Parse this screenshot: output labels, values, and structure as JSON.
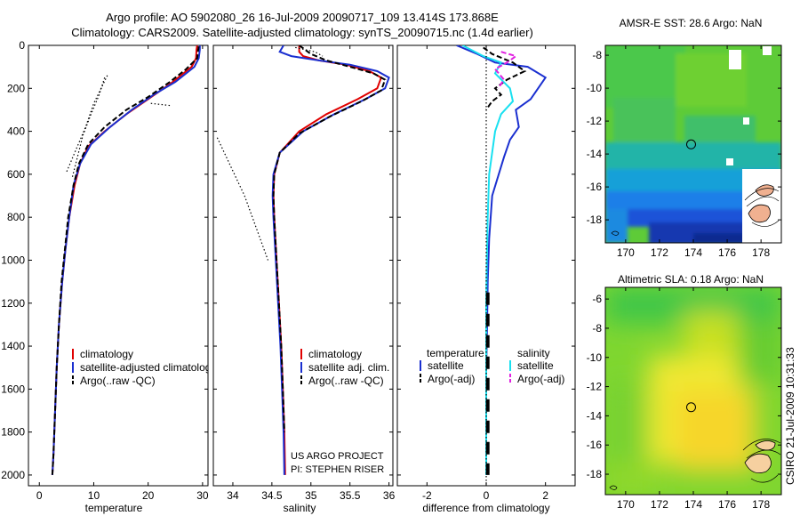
{
  "title": {
    "line1": "Argo profile: AO 5902080_26 16-Jul-2009 20090717_109 13.414S 173.868E",
    "line2": "Climatology: CARS2009. Satellite-adjusted climatology: synTS_20090715.nc (1.4d earlier)"
  },
  "credits": {
    "project": "US ARGO PROJECT",
    "pi": "PI: STEPHEN RISER",
    "stamp": "CSIRO 21-Jul-2009 10:31:33"
  },
  "colors": {
    "climatology": "#e00000",
    "satellite": "#1a2fd0",
    "argo": "#000000",
    "cyan": "#18e0f0",
    "magenta": "#e020e0"
  },
  "chart_data": [
    {
      "type": "line",
      "id": "temperature",
      "xlabel": "temperature",
      "ylabel": "",
      "xlim": [
        -2,
        31
      ],
      "ylim": [
        2050,
        0
      ],
      "xticks": [
        0,
        10,
        20,
        30
      ],
      "yticks": [
        0,
        200,
        400,
        600,
        800,
        1000,
        1200,
        1400,
        1600,
        1800,
        2000
      ],
      "legend": {
        "position": "bottom-right",
        "entries": [
          {
            "label": "climatology",
            "color_key": "climatology",
            "style": "solid"
          },
          {
            "label": "satellite-adjusted climatology",
            "color_key": "satellite",
            "style": "solid"
          },
          {
            "label": "Argo(..raw -QC)",
            "color_key": "argo",
            "style": "dash"
          }
        ]
      },
      "series": [
        {
          "name": "climatology",
          "color_key": "climatology",
          "style": "solid",
          "x": [
            29,
            28.9,
            28.8,
            28,
            24,
            20,
            16,
            12,
            9,
            7.5,
            6.5,
            5.5,
            4.8,
            4.2,
            3.6,
            3.2,
            2.9,
            2.6,
            2.4
          ],
          "y": [
            0,
            20,
            60,
            100,
            180,
            250,
            320,
            400,
            470,
            550,
            650,
            800,
            950,
            1100,
            1300,
            1500,
            1700,
            1900,
            2000
          ]
        },
        {
          "name": "satellite-adjusted climatology",
          "color_key": "satellite",
          "style": "solid",
          "x": [
            29.5,
            29.5,
            29.3,
            28.5,
            25,
            21,
            17,
            13,
            9.5,
            7.5,
            6.3,
            5.5,
            4.8,
            4.2,
            3.6,
            3.2,
            2.9,
            2.6,
            2.4
          ],
          "y": [
            0,
            20,
            60,
            100,
            170,
            230,
            300,
            380,
            460,
            550,
            650,
            800,
            950,
            1100,
            1300,
            1500,
            1700,
            1900,
            2000
          ]
        },
        {
          "name": "Argo(..raw -QC)",
          "color_key": "argo",
          "style": "dash",
          "x": [
            29.3,
            29.2,
            29,
            27,
            24,
            20,
            16,
            12,
            9,
            7.3,
            6.3,
            5.3,
            4.7,
            4.1,
            3.6,
            3.2,
            2.9,
            2.6,
            2.4
          ],
          "y": [
            5,
            20,
            60,
            110,
            170,
            240,
            300,
            380,
            460,
            550,
            650,
            800,
            950,
            1100,
            1300,
            1500,
            1700,
            1900,
            2000
          ]
        },
        {
          "name": "envelope-left",
          "color_key": "argo",
          "style": "dot",
          "x": [
            12.5,
            10,
            8.5,
            6.5,
            5
          ],
          "y": [
            140,
            270,
            380,
            500,
            590
          ]
        },
        {
          "name": "envelope-right",
          "color_key": "argo",
          "style": "dot",
          "x": [
            12,
            11,
            9.5,
            8,
            7,
            6
          ],
          "y": [
            150,
            230,
            320,
            420,
            520,
            620
          ]
        },
        {
          "name": "envelope-tick",
          "color_key": "argo",
          "style": "dot",
          "x": [
            20.5,
            24
          ],
          "y": [
            270,
            280
          ]
        }
      ]
    },
    {
      "type": "line",
      "id": "salinity",
      "xlabel": "salinity",
      "xlim": [
        33.75,
        36.05
      ],
      "ylim": [
        2050,
        0
      ],
      "xticks": [
        34,
        34.5,
        35,
        35.5,
        36
      ],
      "xticklabels": [
        "34",
        "34.5",
        "35",
        "35.5",
        "36"
      ],
      "yticks": [
        0,
        200,
        400,
        600,
        800,
        1000,
        1200,
        1400,
        1600,
        1800,
        2000
      ],
      "legend": {
        "position": "bottom-right",
        "entries": [
          {
            "label": "climatology",
            "color_key": "climatology",
            "style": "solid"
          },
          {
            "label": "satellite adj. clim.",
            "color_key": "satellite",
            "style": "solid"
          },
          {
            "label": "Argo(..raw -QC)",
            "color_key": "argo",
            "style": "dash"
          }
        ]
      },
      "series": [
        {
          "name": "climatology",
          "color_key": "climatology",
          "style": "solid",
          "x": [
            34.85,
            34.85,
            34.9,
            35.1,
            35.45,
            35.75,
            35.9,
            35.85,
            35.6,
            35.2,
            34.85,
            34.6,
            34.53,
            34.52,
            34.53,
            34.56,
            34.59,
            34.62,
            34.64,
            34.66,
            34.67
          ],
          "y": [
            0,
            30,
            50,
            70,
            90,
            120,
            150,
            200,
            250,
            320,
            400,
            500,
            600,
            700,
            800,
            1000,
            1200,
            1400,
            1600,
            1800,
            2000
          ]
        },
        {
          "name": "satellite adj. clim.",
          "color_key": "satellite",
          "style": "solid",
          "x": [
            34.65,
            34.6,
            34.75,
            35.1,
            35.5,
            35.85,
            36,
            35.95,
            35.7,
            35.3,
            34.9,
            34.6,
            34.52,
            34.51,
            34.52,
            34.55,
            34.58,
            34.61,
            34.63,
            34.65,
            34.66
          ],
          "y": [
            0,
            30,
            50,
            70,
            90,
            120,
            150,
            200,
            250,
            320,
            400,
            500,
            600,
            700,
            800,
            1000,
            1200,
            1400,
            1600,
            1800,
            2000
          ]
        },
        {
          "name": "Argo(..raw -QC)",
          "color_key": "argo",
          "style": "dash",
          "x": [
            34.85,
            35.0,
            35.2,
            35.5,
            35.8,
            35.95,
            35.9,
            35.65,
            35.25,
            34.85,
            34.6,
            34.53,
            34.52,
            34.53,
            34.56,
            34.59,
            34.62,
            34.64,
            34.66
          ],
          "y": [
            0,
            40,
            70,
            100,
            130,
            160,
            210,
            260,
            330,
            410,
            500,
            600,
            700,
            800,
            1000,
            1200,
            1400,
            1600,
            1800
          ]
        },
        {
          "name": "envelope",
          "color_key": "argo",
          "style": "dot",
          "x": [
            33.8,
            34.15,
            34.45
          ],
          "y": [
            430,
            700,
            1000
          ]
        },
        {
          "name": "surface-marks",
          "color_key": "argo",
          "style": "dot",
          "x": [
            34.8,
            35.05,
            35.15
          ],
          "y": [
            10,
            30,
            50
          ]
        }
      ]
    },
    {
      "type": "line",
      "id": "difference",
      "xlabel": "difference from climatology",
      "xlim": [
        -3,
        3
      ],
      "ylim": [
        2050,
        0
      ],
      "xticks": [
        -2,
        0,
        2
      ],
      "yticks": [
        0,
        200,
        400,
        600,
        800,
        1000,
        1200,
        1400,
        1600,
        1800,
        2000
      ],
      "legend": {
        "position": "bottom",
        "column_headers": [
          "temperature",
          "salinity"
        ],
        "entries": [
          {
            "label": "satellite",
            "color_key": "satellite",
            "style": "solid",
            "column": 0
          },
          {
            "label": "Argo(-adj)",
            "color_key": "argo",
            "style": "dash",
            "column": 0
          },
          {
            "label": "satellite",
            "color_key": "cyan",
            "style": "solid",
            "column": 1
          },
          {
            "label": "Argo(-adj)",
            "color_key": "magenta",
            "style": "dash",
            "column": 1
          }
        ]
      },
      "series": [
        {
          "name": "temperature satellite",
          "color_key": "satellite",
          "style": "solid",
          "x": [
            -1,
            -0.3,
            0.3,
            1.4,
            2.0,
            1.5,
            1.0,
            1.1,
            0.8,
            0.6,
            0.2,
            0.1,
            0.05,
            0.03,
            0,
            0,
            0,
            0
          ],
          "y": [
            0,
            40,
            80,
            100,
            150,
            250,
            300,
            380,
            440,
            520,
            700,
            900,
            1100,
            1300,
            1500,
            1700,
            1900,
            2000
          ]
        },
        {
          "name": "temperature Argo(-adj)",
          "color_key": "argo",
          "style": "dash",
          "x": [
            -0.1,
            0.2,
            0.9,
            1.3,
            0.7,
            0.3,
            0.5,
            0.2,
            0.1,
            0
          ],
          "y": [
            10,
            40,
            80,
            120,
            160,
            200,
            230,
            260,
            280,
            300
          ]
        },
        {
          "name": "salinity satellite",
          "color_key": "cyan",
          "style": "solid",
          "x": [
            -0.8,
            -0.1,
            0.5,
            0.3,
            0.8,
            0.9,
            0.5,
            0.3,
            0.1,
            0.05,
            0.02,
            0,
            0,
            0,
            0,
            0
          ],
          "y": [
            0,
            50,
            80,
            130,
            200,
            260,
            320,
            400,
            600,
            800,
            1000,
            1200,
            1400,
            1600,
            1800,
            2000
          ]
        },
        {
          "name": "salinity Argo(-adj)",
          "color_key": "magenta",
          "style": "dash",
          "x": [
            0.5,
            1.0,
            0.7,
            0.3,
            0.6,
            0.4
          ],
          "y": [
            30,
            50,
            80,
            110,
            160,
            200
          ]
        },
        {
          "name": "zero line",
          "color_key": "argo",
          "style": "dot",
          "x": [
            0,
            0
          ],
          "y": [
            0,
            2050
          ]
        },
        {
          "name": "deep Argo segments",
          "color_key": "argo",
          "style": "thickdash",
          "x": [
            0.05,
            0.05,
            0.05,
            0.05
          ],
          "y": [
            1150,
            1300,
            1400,
            2000
          ]
        }
      ]
    },
    {
      "type": "heatmap",
      "id": "sst-map",
      "title": "AMSR-E SST: 28.6 Argo: NaN",
      "xlim": [
        168.8,
        179.2
      ],
      "ylim": [
        -19.4,
        -7.4
      ],
      "xticks": [
        170,
        172,
        174,
        176,
        178
      ],
      "yticks": [
        -8,
        -10,
        -12,
        -14,
        -16,
        -18
      ],
      "profile_marker": {
        "lon": 173.868,
        "lat": -13.414
      }
    },
    {
      "type": "heatmap",
      "id": "sla-map",
      "title": "Altimetric SLA: 0.18 Argo: NaN",
      "xlim": [
        168.8,
        179.2
      ],
      "ylim": [
        -19.4,
        -5.2
      ],
      "xticks": [
        170,
        172,
        174,
        176,
        178
      ],
      "yticks": [
        -6,
        -8,
        -10,
        -12,
        -14,
        -16,
        -18
      ],
      "profile_marker": {
        "lon": 173.868,
        "lat": -13.414
      }
    }
  ]
}
